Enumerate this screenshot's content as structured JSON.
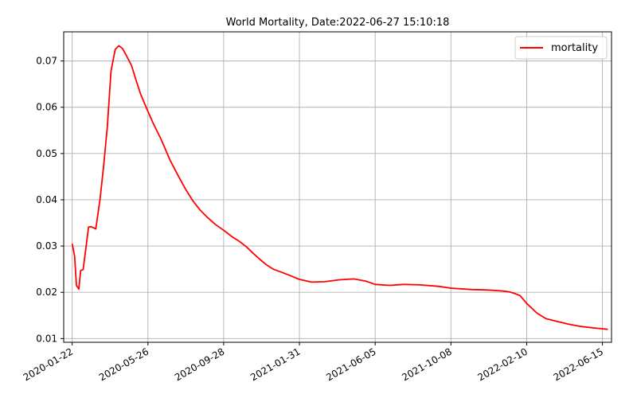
{
  "chart_data": {
    "type": "line",
    "title": "World Mortality, Date:2022-06-27 15:10:18",
    "xlabel": "",
    "ylabel": "",
    "grid": true,
    "legend_position": "top-right",
    "x_ticks": [
      "2020-01-22",
      "2020-05-26",
      "2020-09-28",
      "2021-01-31",
      "2021-06-05",
      "2021-10-08",
      "2022-02-10",
      "2022-06-15"
    ],
    "y_ticks": [
      "0.01",
      "0.02",
      "0.03",
      "0.04",
      "0.05",
      "0.06",
      "0.07"
    ],
    "ylim": [
      0.0092,
      0.0763
    ],
    "xlim": [
      "2020-01-08",
      "2022-06-30"
    ],
    "series": [
      {
        "name": "mortality",
        "color": "#ff0000",
        "x": [
          "2020-01-22",
          "2020-01-26",
          "2020-01-29",
          "2020-02-02",
          "2020-02-05",
          "2020-02-09",
          "2020-02-14",
          "2020-02-18",
          "2020-02-22",
          "2020-03-01",
          "2020-03-08",
          "2020-03-14",
          "2020-03-20",
          "2020-03-26",
          "2020-04-02",
          "2020-04-08",
          "2020-04-14",
          "2020-04-20",
          "2020-04-29",
          "2020-05-06",
          "2020-05-14",
          "2020-05-24",
          "2020-06-03",
          "2020-06-17",
          "2020-07-01",
          "2020-07-15",
          "2020-07-27",
          "2020-08-08",
          "2020-08-20",
          "2020-09-01",
          "2020-09-14",
          "2020-09-28",
          "2020-10-12",
          "2020-10-24",
          "2020-11-05",
          "2020-11-15",
          "2020-11-27",
          "2020-12-07",
          "2020-12-19",
          "2021-01-02",
          "2021-01-14",
          "2021-01-31",
          "2021-02-20",
          "2021-03-14",
          "2021-04-07",
          "2021-05-01",
          "2021-05-21",
          "2021-06-05",
          "2021-06-29",
          "2021-07-22",
          "2021-08-18",
          "2021-09-17",
          "2021-10-08",
          "2021-11-10",
          "2021-12-08",
          "2021-12-31",
          "2022-01-12",
          "2022-01-20",
          "2022-01-30",
          "2022-02-10",
          "2022-02-27",
          "2022-03-14",
          "2022-04-01",
          "2022-04-20",
          "2022-05-11",
          "2022-06-01",
          "2022-06-24"
        ],
        "y": [
          0.0305,
          0.0278,
          0.0215,
          0.0207,
          0.0247,
          0.0249,
          0.03,
          0.0341,
          0.0342,
          0.0337,
          0.0402,
          0.0474,
          0.0558,
          0.0678,
          0.0725,
          0.0733,
          0.0727,
          0.0713,
          0.069,
          0.066,
          0.0628,
          0.0597,
          0.0567,
          0.053,
          0.0487,
          0.0452,
          0.0423,
          0.0398,
          0.0378,
          0.0362,
          0.0347,
          0.0334,
          0.032,
          0.031,
          0.0298,
          0.0285,
          0.0271,
          0.026,
          0.025,
          0.0243,
          0.0237,
          0.0228,
          0.0222,
          0.0223,
          0.0227,
          0.0229,
          0.0224,
          0.0217,
          0.0215,
          0.0217,
          0.0216,
          0.0213,
          0.0209,
          0.0206,
          0.0205,
          0.0203,
          0.0201,
          0.0198,
          0.0193,
          0.0176,
          0.0155,
          0.0143,
          0.0137,
          0.0131,
          0.0126,
          0.0123,
          0.012
        ]
      }
    ]
  }
}
